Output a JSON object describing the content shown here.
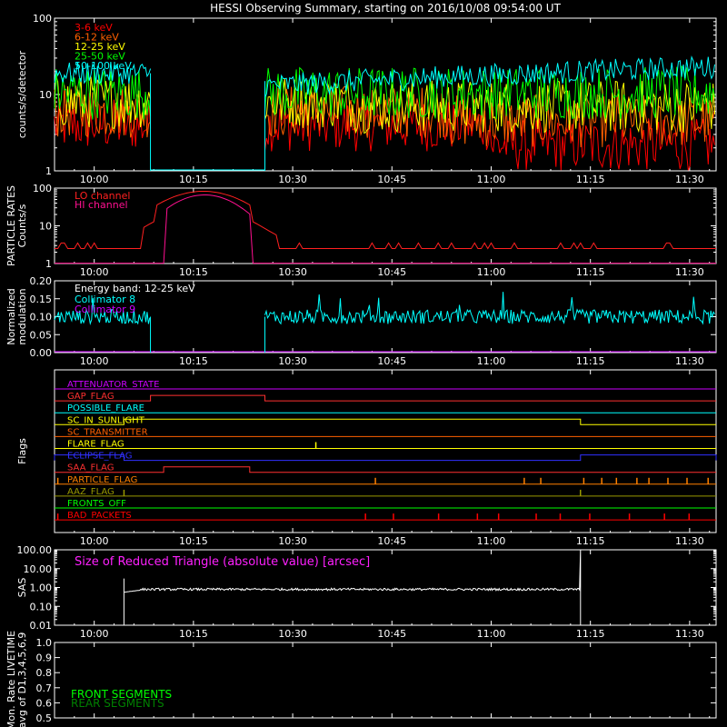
{
  "title": "HESSI Observing Summary, starting on 2016/10/08 09:54:00 UT",
  "time_ticks": [
    "10:00",
    "10:15",
    "10:30",
    "10:45",
    "11:00",
    "11:15",
    "11:30"
  ],
  "chart_data": [
    {
      "id": "count-rates",
      "type": "line",
      "ylabel": "counts/s/detector",
      "yscale": "log",
      "ylim": [
        1,
        100
      ],
      "yticks": [
        "1",
        "10",
        "100"
      ],
      "series": [
        {
          "name": "3-6 keV",
          "color": "#ff0000",
          "level": 4
        },
        {
          "name": "6-12 keV",
          "color": "#ff6000",
          "level": 6
        },
        {
          "name": "12-25 keV",
          "color": "#ffff00",
          "level": 8
        },
        {
          "name": "25-50 keV",
          "color": "#00ff00",
          "level": 10.5
        },
        {
          "name": "50-100 keV",
          "color": "#00ffff",
          "level": 19
        }
      ]
    },
    {
      "id": "particle-rates",
      "type": "line",
      "ylabel": "PARTICLE RATES",
      "ylabel2": "Counts/s",
      "yscale": "log",
      "ylim": [
        1,
        100
      ],
      "yticks": [
        "1",
        "10",
        "100"
      ],
      "series": [
        {
          "name": "LO channel",
          "color": "#ff2020"
        },
        {
          "name": "HI channel",
          "color": "#ff1090"
        }
      ]
    },
    {
      "id": "modulation",
      "type": "line",
      "ylabel": "Normalized",
      "ylabel2": "modulation",
      "ylim": [
        0,
        0.2
      ],
      "yticks": [
        "0.00",
        "0.05",
        "0.10",
        "0.15",
        "0.20"
      ],
      "annotation": "Energy band: 12-25 keV",
      "series": [
        {
          "name": "Collimator 8",
          "color": "#00ffff",
          "level": 0.1
        },
        {
          "name": "Collimator 9",
          "color": "#cc00ff",
          "level": 0
        }
      ]
    },
    {
      "id": "flags",
      "type": "line",
      "ylabel": "Flags",
      "series": [
        {
          "name": "ATTENUATOR_STATE",
          "color": "#cc00ff"
        },
        {
          "name": "GAP_FLAG",
          "color": "#ff3030"
        },
        {
          "name": "POSSIBLE_FLARE",
          "color": "#00ffff"
        },
        {
          "name": "SC_IN_SUNLIGHT",
          "color": "#ffff00"
        },
        {
          "name": "SC_TRANSMITTER",
          "color": "#ff6000"
        },
        {
          "name": "FLARE_FLAG",
          "color": "#ffff00"
        },
        {
          "name": "ECLIPSE_FLAG",
          "color": "#3030ff"
        },
        {
          "name": "SAA_FLAG",
          "color": "#ff3030"
        },
        {
          "name": "PARTICLE_FLAG",
          "color": "#ff8000"
        },
        {
          "name": "AAZ_FLAG",
          "color": "#999900"
        },
        {
          "name": "FRONTS_OFF",
          "color": "#00ff00"
        },
        {
          "name": "BAD_PACKETS",
          "color": "#ff0000"
        }
      ]
    },
    {
      "id": "sas",
      "type": "line",
      "ylabel": "SAS",
      "yscale": "log",
      "ylim": [
        0.01,
        100
      ],
      "yticks": [
        "0.01",
        "0.10",
        "1.00",
        "10.00",
        "100.00"
      ],
      "annotation": "Size of Reduced Triangle (absolute value) [arcsec]",
      "series": [
        {
          "name": "",
          "color": "#ffffff",
          "level": 0.8
        }
      ]
    },
    {
      "id": "livetime",
      "type": "line",
      "ylabel": "Mon. Rate LIVETIME",
      "ylabel2": "avg of D1,3,4,5,6,9",
      "ylim": [
        0.5,
        1.0
      ],
      "yticks": [
        "0.5",
        "0.6",
        "0.7",
        "0.8",
        "0.9",
        "1.0"
      ],
      "series": [
        {
          "name": "FRONT SEGMENTS",
          "color": "#00ff00"
        },
        {
          "name": "REAR SEGMENTS",
          "color": "#008000"
        }
      ]
    }
  ]
}
